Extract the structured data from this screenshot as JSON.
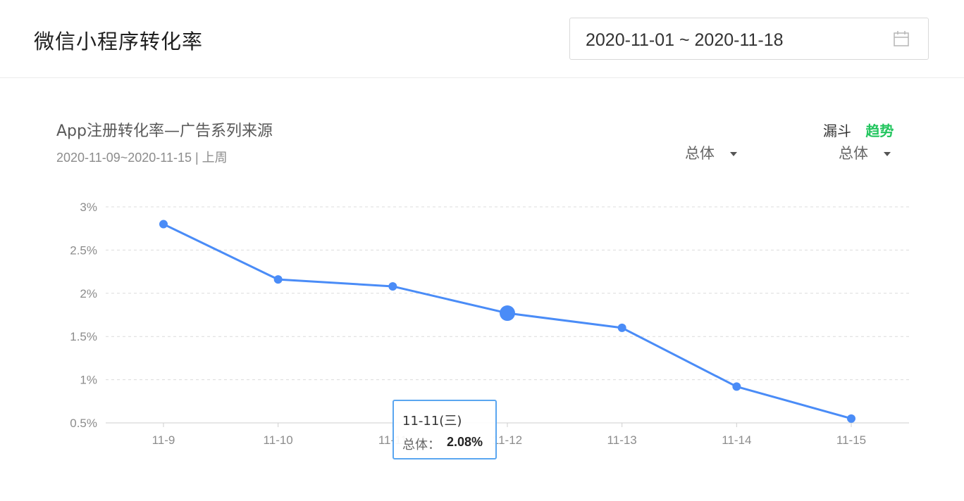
{
  "header": {
    "title": "微信小程序转化率",
    "date_range": "2020-11-01 ~ 2020-11-18",
    "calendar_icon": "calendar-icon"
  },
  "panel": {
    "title": "App注册转化率—广告系列来源",
    "subtitle": "2020-11-09~2020-11-15 | 上周",
    "view_funnel": "漏斗",
    "view_trend": "趋势",
    "trend_color": "#22c55e",
    "dropdown_left": "总体",
    "dropdown_right": "总体"
  },
  "tooltip": {
    "date": "11-11(三)",
    "label": "总体：",
    "value": "2.08%"
  },
  "chart_data": {
    "type": "line",
    "categories": [
      "11-9",
      "11-10",
      "11-11",
      "11-12",
      "11-13",
      "11-14",
      "11-15"
    ],
    "series": [
      {
        "values": [
          2.8,
          2.16,
          2.08,
          1.77,
          1.6,
          0.92,
          0.55
        ],
        "color": "#4a8cf7"
      }
    ],
    "y_ticks": [
      "3%",
      "2.5%",
      "2%",
      "1.5%",
      "1%",
      "0.5%"
    ],
    "ylim": [
      0.5,
      3
    ],
    "grid": true,
    "highlight_index": 3
  }
}
